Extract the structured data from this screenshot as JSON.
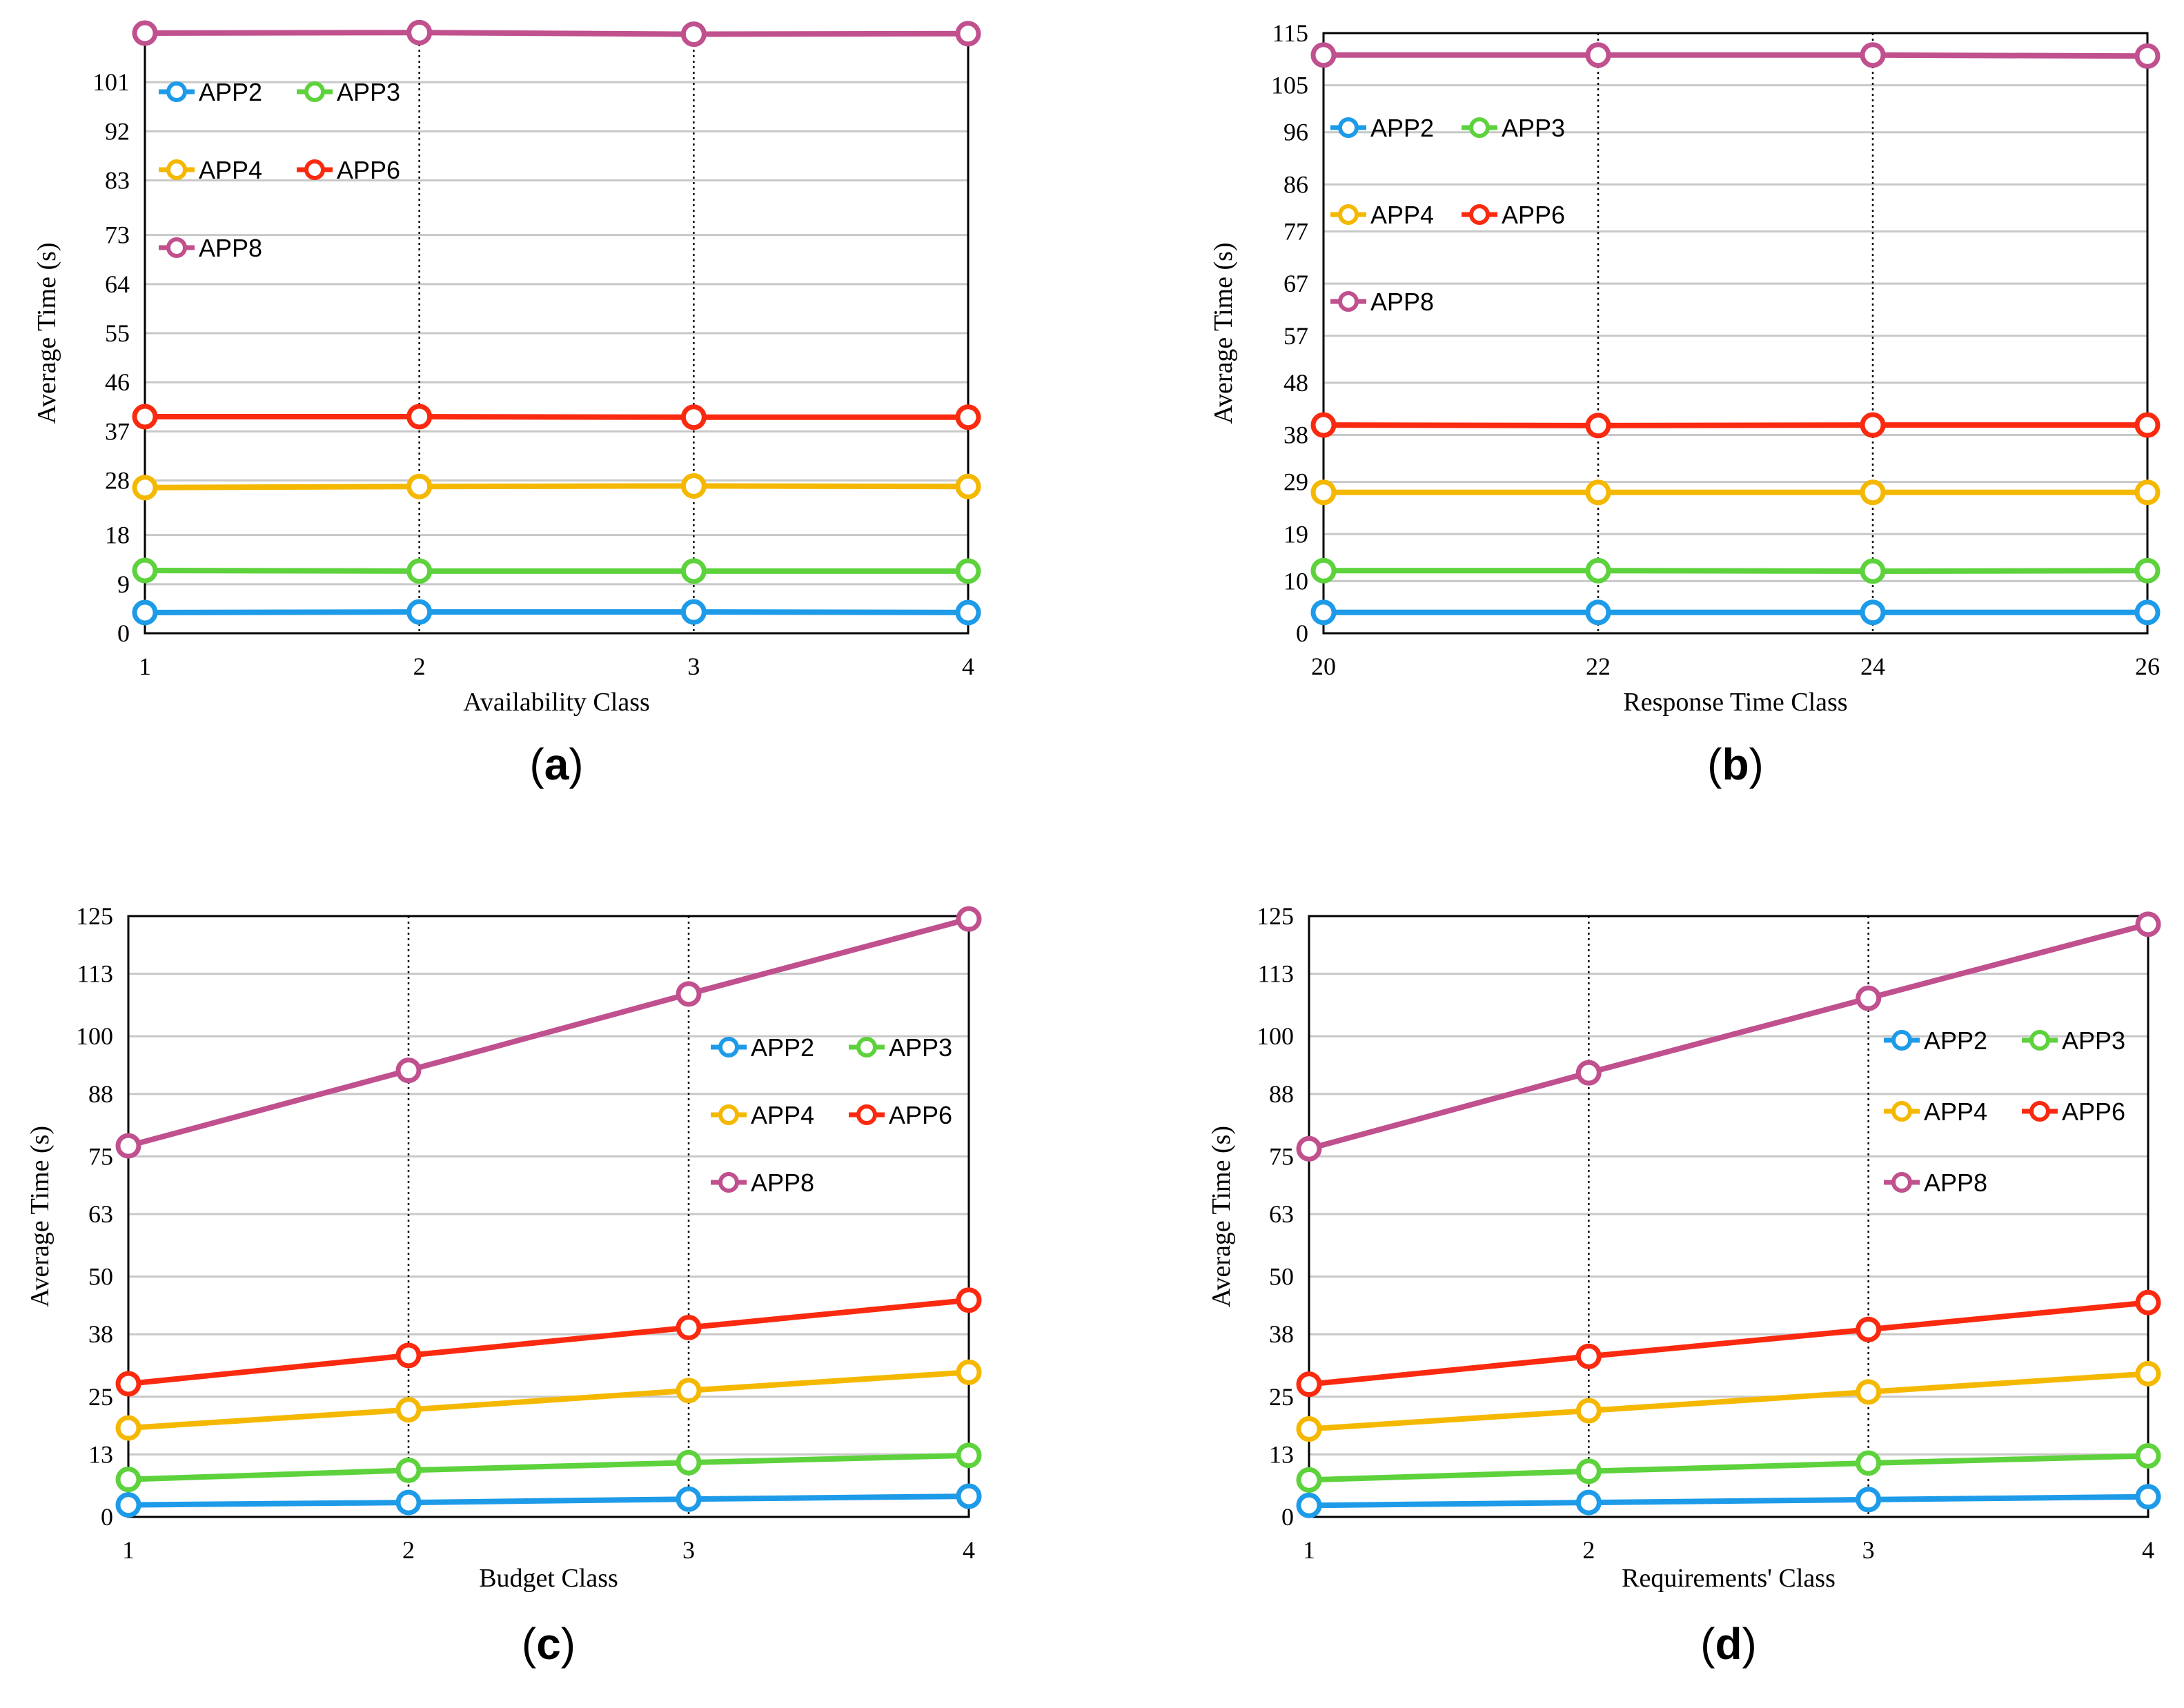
{
  "colors": {
    "APP2": "#1e9be8",
    "APP3": "#5dd23c",
    "APP4": "#f5b800",
    "APP6": "#fa2a10",
    "APP8": "#c0508e",
    "grid": "#c8c8c8",
    "axis": "#000000"
  },
  "chart_data": [
    {
      "type": "line",
      "caption": "a",
      "xlabel": "Availability Class",
      "ylabel": "Average Time (s)",
      "categories": [
        "1",
        "2",
        "3",
        "4"
      ],
      "x": [
        1,
        2,
        3,
        4
      ],
      "xlim": [
        1,
        4
      ],
      "ylim": [
        0,
        110
      ],
      "yticks": [
        0,
        9,
        18,
        28,
        37,
        46,
        55,
        64,
        73,
        83,
        92,
        101
      ],
      "vgrid_dotted": [
        2,
        3
      ],
      "legend_pos": "top-left",
      "series": [
        {
          "name": "APP2",
          "values": [
            3.8,
            3.9,
            3.9,
            3.8
          ]
        },
        {
          "name": "APP3",
          "values": [
            11.5,
            11.4,
            11.4,
            11.4
          ]
        },
        {
          "name": "APP4",
          "values": [
            26.7,
            26.9,
            27.0,
            26.9
          ]
        },
        {
          "name": "APP6",
          "values": [
            39.7,
            39.7,
            39.6,
            39.6
          ]
        },
        {
          "name": "APP8",
          "values": [
            110.0,
            110.1,
            109.8,
            109.9
          ]
        }
      ]
    },
    {
      "type": "line",
      "caption": "b",
      "xlabel": "Response Time Class",
      "ylabel": "Average Time (s)",
      "categories": [
        "20",
        "22",
        "24",
        "26"
      ],
      "x": [
        20,
        22,
        24,
        26
      ],
      "xlim": [
        20,
        26
      ],
      "ylim": [
        0,
        115
      ],
      "yticks": [
        0,
        10,
        19,
        29,
        38,
        48,
        57,
        67,
        77,
        86,
        96,
        105,
        115
      ],
      "vgrid_dotted": [
        22,
        24
      ],
      "legend_pos": "top-left",
      "series": [
        {
          "name": "APP2",
          "values": [
            4.0,
            4.0,
            4.0,
            4.0
          ]
        },
        {
          "name": "APP3",
          "values": [
            12.0,
            12.0,
            11.9,
            12.0
          ]
        },
        {
          "name": "APP4",
          "values": [
            27.0,
            27.0,
            27.0,
            27.0
          ]
        },
        {
          "name": "APP6",
          "values": [
            39.9,
            39.8,
            39.9,
            39.9
          ]
        },
        {
          "name": "APP8",
          "values": [
            110.8,
            110.8,
            110.8,
            110.6
          ]
        }
      ]
    },
    {
      "type": "line",
      "caption": "c",
      "xlabel": "Budget Class",
      "ylabel": "Average Time (s)",
      "categories": [
        "1",
        "2",
        "3",
        "4"
      ],
      "x": [
        1,
        2,
        3,
        4
      ],
      "xlim": [
        1,
        4
      ],
      "ylim": [
        0,
        125
      ],
      "yticks": [
        0,
        13,
        25,
        38,
        50,
        63,
        75,
        88,
        100,
        113,
        125
      ],
      "vgrid_dotted": [
        2,
        3
      ],
      "legend_pos": "upper-right",
      "series": [
        {
          "name": "APP2",
          "values": [
            2.5,
            3.0,
            3.7,
            4.3
          ]
        },
        {
          "name": "APP3",
          "values": [
            7.8,
            9.7,
            11.3,
            12.8
          ]
        },
        {
          "name": "APP4",
          "values": [
            18.5,
            22.3,
            26.3,
            30.1
          ]
        },
        {
          "name": "APP6",
          "values": [
            27.7,
            33.6,
            39.4,
            45.1
          ]
        },
        {
          "name": "APP8",
          "values": [
            77.2,
            92.9,
            108.8,
            124.4
          ]
        }
      ]
    },
    {
      "type": "line",
      "caption": "d",
      "xlabel": "Requirements' Class",
      "ylabel": "Average Time (s)",
      "categories": [
        "1",
        "2",
        "3",
        "4"
      ],
      "x": [
        1,
        2,
        3,
        4
      ],
      "xlim": [
        1,
        4
      ],
      "ylim": [
        0,
        125
      ],
      "yticks": [
        0,
        13,
        25,
        38,
        50,
        63,
        75,
        88,
        100,
        113,
        125
      ],
      "vgrid_dotted": [
        2,
        3
      ],
      "legend_pos": "upper-right",
      "series": [
        {
          "name": "APP2",
          "values": [
            2.4,
            3.0,
            3.6,
            4.2
          ]
        },
        {
          "name": "APP3",
          "values": [
            7.7,
            9.5,
            11.2,
            12.7
          ]
        },
        {
          "name": "APP4",
          "values": [
            18.3,
            22.1,
            26.0,
            29.8
          ]
        },
        {
          "name": "APP6",
          "values": [
            27.6,
            33.4,
            39.0,
            44.6
          ]
        },
        {
          "name": "APP8",
          "values": [
            76.6,
            92.4,
            107.9,
            123.3
          ]
        }
      ]
    }
  ]
}
